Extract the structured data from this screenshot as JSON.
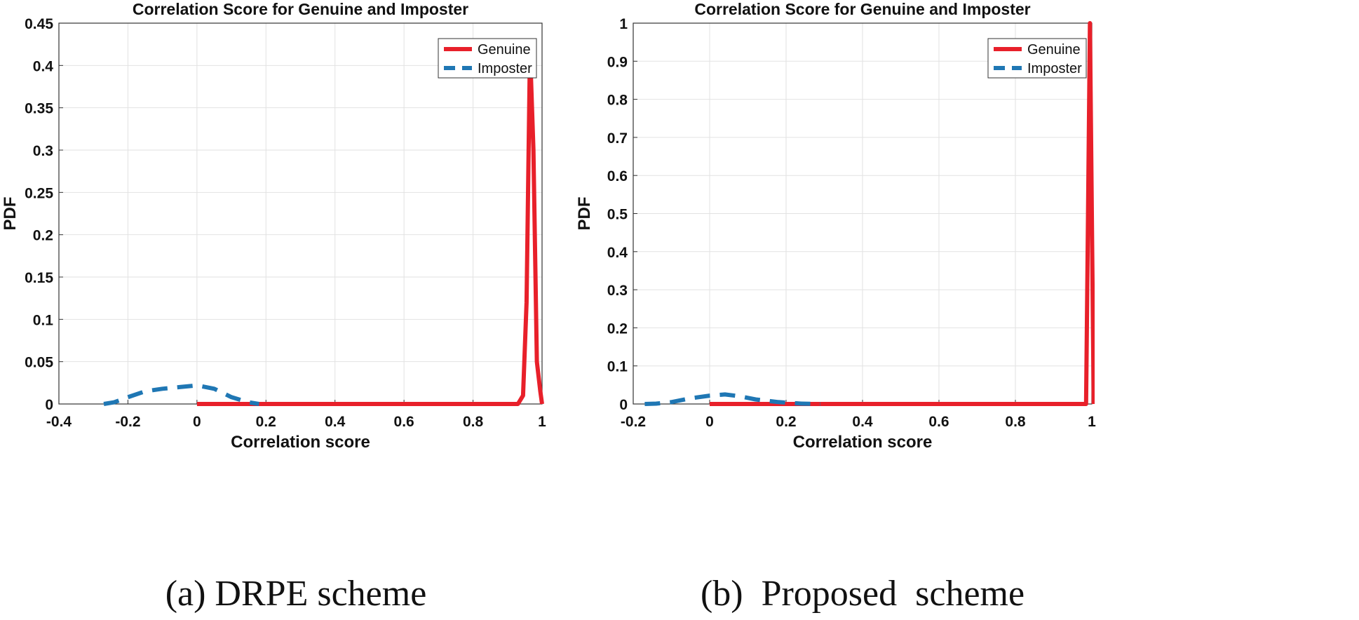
{
  "chart_data": [
    {
      "type": "line",
      "title": "Correlation Score for Genuine and Imposter",
      "xlabel": "Correlation score",
      "ylabel": "PDF",
      "caption": "(a) DRPE scheme",
      "xlim": [
        -0.4,
        1
      ],
      "ylim": [
        0,
        0.45
      ],
      "xticks": [
        -0.4,
        -0.2,
        0,
        0.2,
        0.4,
        0.6,
        0.8,
        1
      ],
      "xtick_labels": [
        "-0.4",
        "-0.2",
        "0",
        "0.2",
        "0.4",
        "0.6",
        "0.8",
        "1"
      ],
      "yticks": [
        0,
        0.05,
        0.1,
        0.15,
        0.2,
        0.25,
        0.3,
        0.35,
        0.4,
        0.45
      ],
      "ytick_labels": [
        "0",
        "0.05",
        "0.1",
        "0.15",
        "0.2",
        "0.25",
        "0.3",
        "0.35",
        "0.4",
        "0.45"
      ],
      "grid": true,
      "legend_position": "top-right",
      "series": [
        {
          "name": "Genuine",
          "color": "#e8202a",
          "style": "solid",
          "x": [
            0,
            0.5,
            0.93,
            0.945,
            0.955,
            0.965,
            0.975,
            0.985,
            0.995,
            1.0
          ],
          "y": [
            0,
            0,
            0,
            0.01,
            0.12,
            0.42,
            0.3,
            0.05,
            0.015,
            0
          ]
        },
        {
          "name": "Imposter",
          "color": "#1f77b4",
          "style": "dashed",
          "x": [
            -0.27,
            -0.24,
            -0.2,
            -0.15,
            -0.1,
            -0.05,
            0,
            0.05,
            0.1,
            0.15,
            0.18
          ],
          "y": [
            0,
            0.002,
            0.008,
            0.015,
            0.018,
            0.02,
            0.022,
            0.018,
            0.008,
            0.002,
            0
          ]
        }
      ]
    },
    {
      "type": "line",
      "title": "Correlation Score for Genuine and Imposter",
      "xlabel": "Correlation score",
      "ylabel": "PDF",
      "caption": "(b)  Proposed  scheme",
      "xlim": [
        -0.2,
        1
      ],
      "ylim": [
        0,
        1
      ],
      "xticks": [
        -0.2,
        0,
        0.2,
        0.4,
        0.6,
        0.8,
        1
      ],
      "xtick_labels": [
        "-0.2",
        "0",
        "0.2",
        "0.4",
        "0.6",
        "0.8",
        "1"
      ],
      "yticks": [
        0,
        0.1,
        0.2,
        0.3,
        0.4,
        0.5,
        0.6,
        0.7,
        0.8,
        0.9,
        1
      ],
      "ytick_labels": [
        "0",
        "0.1",
        "0.2",
        "0.3",
        "0.4",
        "0.5",
        "0.6",
        "0.7",
        "0.8",
        "0.9",
        "1"
      ],
      "grid": true,
      "legend_position": "top-right",
      "series": [
        {
          "name": "Genuine",
          "color": "#e8202a",
          "style": "solid",
          "x": [
            0,
            0.5,
            0.985,
            0.99,
            0.995,
            1.0,
            1.005
          ],
          "y": [
            0,
            0,
            0,
            0.5,
            1.0,
            0.5,
            0
          ]
        },
        {
          "name": "Imposter",
          "color": "#1f77b4",
          "style": "dashed",
          "x": [
            -0.17,
            -0.14,
            -0.1,
            -0.05,
            0,
            0.04,
            0.08,
            0.12,
            0.18,
            0.24,
            0.29
          ],
          "y": [
            0,
            0.001,
            0.005,
            0.015,
            0.022,
            0.025,
            0.02,
            0.012,
            0.005,
            0.001,
            0
          ]
        }
      ]
    }
  ]
}
